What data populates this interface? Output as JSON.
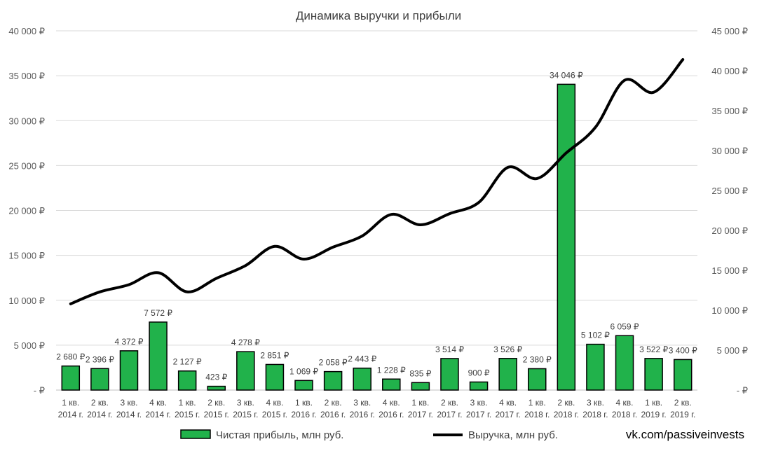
{
  "chart_data": {
    "type": "bar+line",
    "title": "Динамика выручки и прибыли",
    "categories": [
      [
        "1 кв.",
        "2014 г."
      ],
      [
        "2 кв.",
        "2014 г."
      ],
      [
        "3 кв.",
        "2014 г."
      ],
      [
        "4 кв.",
        "2014 г."
      ],
      [
        "1 кв.",
        "2015 г."
      ],
      [
        "2 кв.",
        "2015 г."
      ],
      [
        "3 кв.",
        "2015 г."
      ],
      [
        "4 кв.",
        "2015 г."
      ],
      [
        "1 кв.",
        "2016 г."
      ],
      [
        "2 кв.",
        "2016 г."
      ],
      [
        "3 кв.",
        "2016 г."
      ],
      [
        "4 кв.",
        "2016 г."
      ],
      [
        "1 кв.",
        "2017 г."
      ],
      [
        "2 кв.",
        "2017 г."
      ],
      [
        "3 кв.",
        "2017 г."
      ],
      [
        "4 кв.",
        "2017 г."
      ],
      [
        "1 кв.",
        "2018 г."
      ],
      [
        "2 кв.",
        "2018 г."
      ],
      [
        "3 кв.",
        "2018 г."
      ],
      [
        "4 кв.",
        "2018 г."
      ],
      [
        "1 кв.",
        "2019 г."
      ],
      [
        "2 кв.",
        "2019 г."
      ]
    ],
    "series": [
      {
        "name": "Чистая прибыль, млн руб.",
        "type": "bar",
        "axis": "left",
        "color": "#21b24b",
        "values": [
          2680,
          2396,
          4372,
          7572,
          2127,
          423,
          4278,
          2851,
          1069,
          2058,
          2443,
          1228,
          835,
          3514,
          900,
          3526,
          2380,
          34046,
          5102,
          6059,
          3522,
          3400
        ],
        "labels": [
          "2 680 ₽",
          "2 396 ₽",
          "4 372 ₽",
          "7 572 ₽",
          "2 127 ₽",
          "423 ₽",
          "4 278 ₽",
          "2 851 ₽",
          "1 069 ₽",
          "2 058 ₽",
          "2 443 ₽",
          "1 228 ₽",
          "835 ₽",
          "3 514 ₽",
          "900 ₽",
          "3 526 ₽",
          "2 380 ₽",
          "34 046 ₽",
          "5 102 ₽",
          "6 059 ₽",
          "3 522 ₽",
          "3 400 ₽"
        ]
      },
      {
        "name": "Выручка, млн руб.",
        "type": "line",
        "axis": "right",
        "color": "#000000",
        "values": [
          10800,
          12300,
          13200,
          14700,
          12300,
          14000,
          15600,
          18000,
          16400,
          17900,
          19300,
          22000,
          20700,
          22100,
          23500,
          27900,
          26500,
          29700,
          32900,
          38800,
          37300,
          41400
        ]
      }
    ],
    "y_left": {
      "range": [
        0,
        40000
      ],
      "ticks": [
        0,
        5000,
        10000,
        15000,
        20000,
        25000,
        30000,
        35000,
        40000
      ],
      "tick_labels": [
        "-   ₽",
        "5 000 ₽",
        "10 000 ₽",
        "15 000 ₽",
        "20 000 ₽",
        "25 000 ₽",
        "30 000 ₽",
        "35 000 ₽",
        "40 000 ₽"
      ]
    },
    "y_right": {
      "range": [
        0,
        45000
      ],
      "ticks": [
        0,
        5000,
        10000,
        15000,
        20000,
        25000,
        30000,
        35000,
        40000,
        45000
      ],
      "tick_labels": [
        "-   ₽",
        "5 000 ₽",
        "10 000 ₽",
        "15 000 ₽",
        "20 000 ₽",
        "25 000 ₽",
        "30 000 ₽",
        "35 000 ₽",
        "40 000 ₽",
        "45 000 ₽"
      ]
    },
    "grid": true,
    "legend_position": "bottom",
    "watermark": "vk.com/passiveinvests"
  }
}
